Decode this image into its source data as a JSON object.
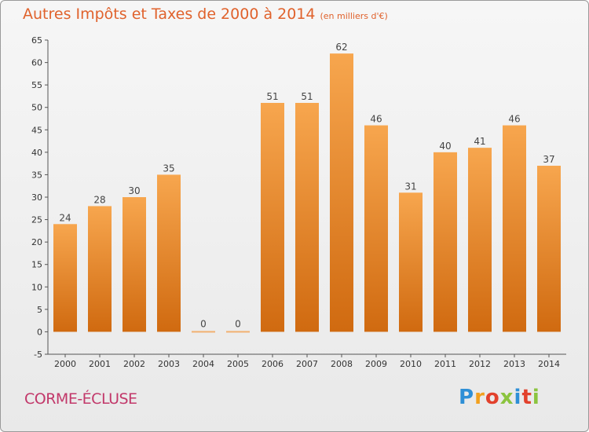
{
  "header": {
    "title": "Autres Impôts et Taxes de 2000 à 2014",
    "subtitle": "(en milliers d'€)"
  },
  "commune": "CORME-ÉCLUSE",
  "logo": {
    "letters": [
      "P",
      "r",
      "o",
      "x",
      "i",
      "t",
      "i"
    ]
  },
  "chart_data": {
    "type": "bar",
    "title": "Autres Impôts et Taxes de 2000 à 2014",
    "subtitle": "(en milliers d'€)",
    "categories": [
      "2000",
      "2001",
      "2002",
      "2003",
      "2004",
      "2005",
      "2006",
      "2007",
      "2008",
      "2009",
      "2010",
      "2011",
      "2012",
      "2013",
      "2014"
    ],
    "values": [
      24,
      28,
      30,
      35,
      0,
      0,
      51,
      51,
      62,
      46,
      31,
      40,
      41,
      46,
      37
    ],
    "ylim": [
      -5,
      65
    ],
    "yticks": [
      -5,
      0,
      5,
      10,
      15,
      20,
      25,
      30,
      35,
      40,
      45,
      50,
      55,
      60,
      65
    ],
    "grid": false,
    "colors": {
      "bar_light": "#f7a64e",
      "bar_dark": "#d06a10",
      "zero_bar": "#f2b070",
      "axis": "#555555"
    }
  }
}
